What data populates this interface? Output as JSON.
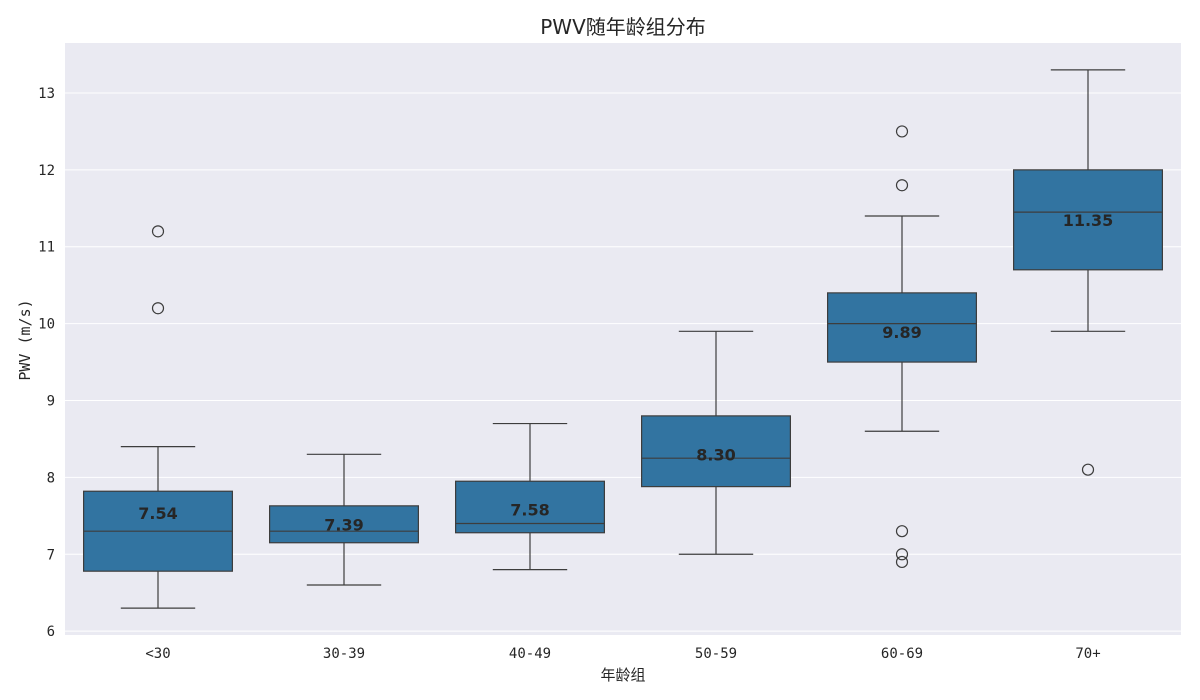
{
  "chart_data": {
    "type": "box",
    "title": "PWV随年龄组分布",
    "xlabel": "年龄组",
    "ylabel": "PWV (m/s)",
    "ylim": [
      5.95,
      13.65
    ],
    "yticks": [
      6,
      7,
      8,
      9,
      10,
      11,
      12,
      13
    ],
    "grid": true,
    "colors": {
      "box_fill": "#3274a1",
      "line": "#3d3d3d",
      "background": "#eaeaf2",
      "grid": "#ffffff"
    },
    "categories": [
      "<30",
      "30-39",
      "40-49",
      "50-59",
      "60-69",
      "70+"
    ],
    "boxes": [
      {
        "category": "<30",
        "whisker_low": 6.3,
        "q1": 6.78,
        "median": 7.3,
        "q3": 7.82,
        "whisker_high": 8.4,
        "outliers": [
          10.2,
          11.2
        ],
        "mean_label": "7.54"
      },
      {
        "category": "30-39",
        "whisker_low": 6.6,
        "q1": 7.15,
        "median": 7.3,
        "q3": 7.63,
        "whisker_high": 8.3,
        "outliers": [],
        "mean_label": "7.39"
      },
      {
        "category": "40-49",
        "whisker_low": 6.8,
        "q1": 7.28,
        "median": 7.4,
        "q3": 7.95,
        "whisker_high": 8.7,
        "outliers": [],
        "mean_label": "7.58"
      },
      {
        "category": "50-59",
        "whisker_low": 7.0,
        "q1": 7.88,
        "median": 8.25,
        "q3": 8.8,
        "whisker_high": 9.9,
        "outliers": [],
        "mean_label": "8.30"
      },
      {
        "category": "60-69",
        "whisker_low": 8.6,
        "q1": 9.5,
        "median": 10.0,
        "q3": 10.4,
        "whisker_high": 11.4,
        "outliers": [
          6.9,
          7.0,
          7.3,
          11.8,
          12.5
        ],
        "mean_label": "9.89"
      },
      {
        "category": "70+",
        "whisker_low": 9.9,
        "q1": 10.7,
        "median": 11.45,
        "q3": 12.0,
        "whisker_high": 13.3,
        "outliers": [
          8.1
        ],
        "mean_label": "11.35"
      }
    ]
  }
}
